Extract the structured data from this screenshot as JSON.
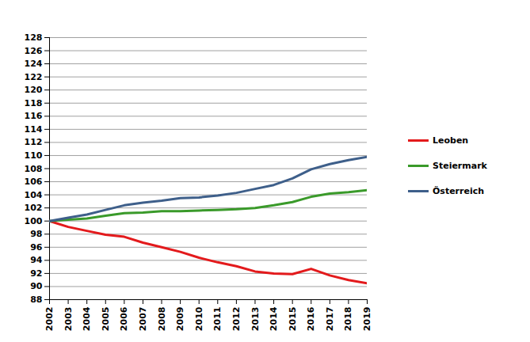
{
  "chart_data": {
    "type": "line",
    "x": [
      2002,
      2003,
      2004,
      2005,
      2006,
      2007,
      2008,
      2009,
      2010,
      2011,
      2012,
      2013,
      2014,
      2015,
      2016,
      2017,
      2018,
      2019
    ],
    "series": [
      {
        "name": "Leoben",
        "color": "#e31a1c",
        "values": [
          100,
          99.1,
          98.5,
          97.9,
          97.6,
          96.7,
          96.0,
          95.3,
          94.4,
          93.7,
          93.1,
          92.3,
          92.0,
          91.9,
          92.7,
          91.7,
          91.0,
          90.5
        ]
      },
      {
        "name": "Steiermark",
        "color": "#3a9a2a",
        "values": [
          100,
          100.2,
          100.4,
          100.8,
          101.2,
          101.3,
          101.5,
          101.5,
          101.6,
          101.7,
          101.8,
          102.0,
          102.4,
          102.9,
          103.7,
          104.2,
          104.4,
          104.7
        ]
      },
      {
        "name": "Österreich",
        "color": "#3e5f8a",
        "values": [
          100,
          100.5,
          101.0,
          101.7,
          102.4,
          102.8,
          103.1,
          103.5,
          103.6,
          103.9,
          104.3,
          104.9,
          105.5,
          106.5,
          107.9,
          108.7,
          109.3,
          109.8
        ]
      }
    ],
    "xlim": [
      2002,
      2019
    ],
    "xticks": [
      2002,
      2003,
      2004,
      2005,
      2006,
      2007,
      2008,
      2009,
      2010,
      2011,
      2012,
      2013,
      2014,
      2015,
      2016,
      2017,
      2018,
      2019
    ],
    "ylim": [
      88,
      128
    ],
    "yticks": [
      88,
      90,
      92,
      94,
      96,
      98,
      100,
      102,
      104,
      106,
      108,
      110,
      112,
      114,
      116,
      118,
      120,
      122,
      124,
      126,
      128
    ],
    "grid": true,
    "legend": "right"
  }
}
